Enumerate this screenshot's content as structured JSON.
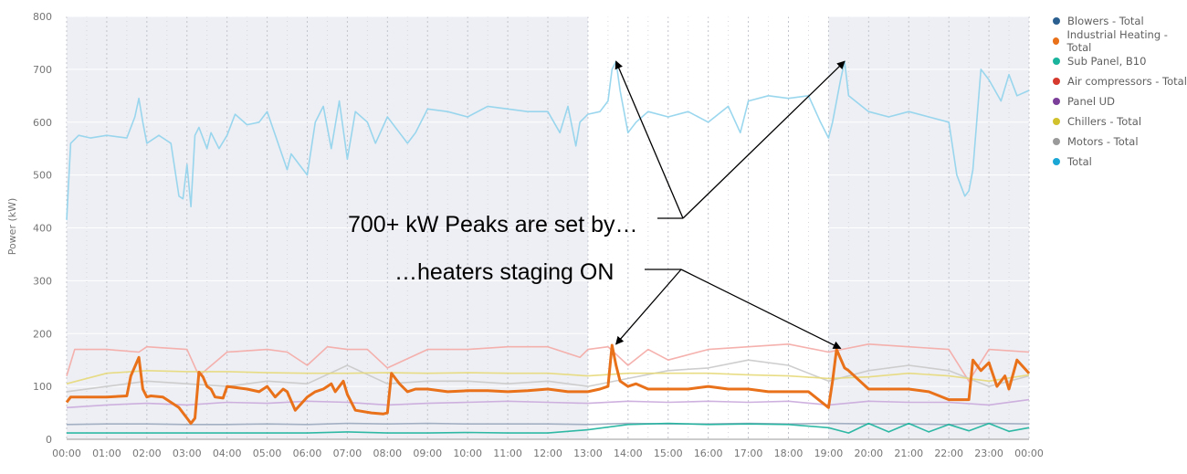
{
  "chart_data": {
    "type": "line",
    "title": "",
    "xlabel": "",
    "ylabel": "Power (kW)",
    "ylim": [
      0,
      800
    ],
    "yticks": [
      0,
      100,
      200,
      300,
      400,
      500,
      600,
      700,
      800
    ],
    "x_tick_labels": [
      "00:00",
      "01:00",
      "02:00",
      "03:00",
      "04:00",
      "05:00",
      "06:00",
      "07:00",
      "08:00",
      "09:00",
      "10:00",
      "11:00",
      "12:00",
      "13:00",
      "14:00",
      "15:00",
      "16:00",
      "17:00",
      "18:00",
      "19:00",
      "20:00",
      "21:00",
      "22:00",
      "23:00",
      "00:00"
    ],
    "x_unit": "hour of day",
    "grid": true,
    "legend_position": "right",
    "shaded_periods": [
      [
        0,
        13
      ],
      [
        19,
        24
      ]
    ],
    "series": [
      {
        "name": "Blowers - Total",
        "color": "#9aa8be",
        "x": [
          0,
          1,
          2,
          3,
          4,
          5,
          6,
          7,
          8,
          9,
          10,
          11,
          12,
          13,
          14,
          15,
          16,
          17,
          18,
          19,
          20,
          21,
          22,
          23,
          24
        ],
        "values": [
          28,
          29,
          29,
          28,
          28,
          29,
          28,
          30,
          29,
          30,
          29,
          29,
          29,
          28,
          30,
          29,
          29,
          30,
          29,
          30,
          29,
          29,
          28,
          30,
          29
        ]
      },
      {
        "name": "Industrial Heating - Total",
        "color": "#e8711a",
        "x": [
          0,
          0.1,
          0.5,
          1,
          1.5,
          1.6,
          1.8,
          1.9,
          2,
          2.1,
          2.4,
          2.8,
          3,
          3.1,
          3.2,
          3.3,
          3.4,
          3.5,
          3.6,
          3.7,
          3.9,
          4,
          4.5,
          4.8,
          5,
          5.2,
          5.4,
          5.5,
          5.7,
          6,
          6.2,
          6.4,
          6.5,
          6.6,
          6.7,
          6.9,
          7,
          7.2,
          7.6,
          7.9,
          8,
          8.1,
          8.3,
          8.5,
          8.7,
          9,
          9.5,
          10,
          10.5,
          11,
          11.5,
          12,
          12.5,
          13,
          13.3,
          13.5,
          13.6,
          13.7,
          13.8,
          14,
          14.2,
          14.5,
          15,
          15.5,
          16,
          16.5,
          17,
          17.5,
          18,
          18.5,
          19,
          19.1,
          19.2,
          19.4,
          19.5,
          20,
          20.5,
          21,
          21.5,
          22,
          22.5,
          22.6,
          22.8,
          23,
          23.2,
          23.4,
          23.5,
          23.7,
          24
        ],
        "values": [
          70,
          80,
          80,
          80,
          82,
          120,
          155,
          95,
          80,
          82,
          80,
          60,
          40,
          30,
          40,
          127,
          118,
          100,
          95,
          80,
          78,
          100,
          95,
          90,
          100,
          80,
          95,
          90,
          55,
          80,
          90,
          95,
          100,
          105,
          90,
          110,
          85,
          55,
          50,
          48,
          50,
          125,
          105,
          90,
          95,
          95,
          90,
          92,
          92,
          90,
          92,
          95,
          90,
          90,
          95,
          100,
          178,
          140,
          110,
          100,
          105,
          95,
          95,
          95,
          100,
          95,
          95,
          90,
          90,
          90,
          60,
          110,
          170,
          135,
          130,
          95,
          95,
          95,
          90,
          75,
          75,
          150,
          130,
          145,
          100,
          120,
          95,
          150,
          125
        ]
      },
      {
        "name": "Sub Panel, B10",
        "color": "#1ab39c",
        "x": [
          0,
          1,
          2,
          3,
          4,
          5,
          6,
          7,
          8,
          9,
          10,
          11,
          12,
          13,
          14,
          15,
          16,
          17,
          18,
          19,
          19.5,
          20,
          20.5,
          21,
          21.5,
          22,
          22.5,
          23,
          23.5,
          24
        ],
        "values": [
          12,
          12,
          12,
          12,
          12,
          12,
          12,
          14,
          12,
          12,
          13,
          12,
          12,
          18,
          28,
          30,
          28,
          29,
          28,
          22,
          12,
          30,
          14,
          30,
          14,
          28,
          16,
          30,
          15,
          22
        ]
      },
      {
        "name": "Air compressors - Total",
        "color": "#f4a9a4",
        "x": [
          0,
          0.2,
          1,
          1.8,
          2,
          3,
          3.3,
          4,
          5,
          5.5,
          6,
          6.5,
          7,
          7.5,
          8,
          9,
          10,
          11,
          12,
          12.8,
          13,
          13.5,
          14,
          14.5,
          15,
          16,
          17,
          18,
          19,
          20,
          21,
          22,
          22.5,
          23,
          24
        ],
        "values": [
          120,
          170,
          170,
          165,
          175,
          170,
          120,
          165,
          170,
          165,
          140,
          175,
          170,
          170,
          135,
          170,
          170,
          175,
          175,
          155,
          170,
          175,
          140,
          170,
          150,
          170,
          175,
          180,
          165,
          180,
          175,
          170,
          110,
          170,
          165
        ]
      },
      {
        "name": "Panel UD",
        "color": "#c9a8dc",
        "x": [
          0,
          1,
          2,
          3,
          4,
          5,
          6,
          7,
          8,
          9,
          10,
          11,
          12,
          13,
          14,
          15,
          16,
          17,
          18,
          19,
          20,
          21,
          22,
          23,
          24
        ],
        "values": [
          60,
          65,
          68,
          65,
          70,
          68,
          72,
          70,
          65,
          68,
          70,
          72,
          70,
          68,
          72,
          70,
          72,
          70,
          72,
          65,
          72,
          70,
          70,
          65,
          75
        ]
      },
      {
        "name": "Chillers - Total",
        "color": "#e5d878",
        "x": [
          0,
          1,
          2,
          3,
          4,
          5,
          6,
          7,
          8,
          9,
          10,
          11,
          12,
          13,
          14,
          15,
          16,
          17,
          18,
          19,
          20,
          21,
          22,
          23,
          24
        ],
        "values": [
          105,
          125,
          130,
          128,
          128,
          126,
          125,
          125,
          126,
          125,
          126,
          125,
          125,
          120,
          125,
          125,
          125,
          122,
          120,
          115,
          118,
          125,
          120,
          110,
          122
        ]
      },
      {
        "name": "Motors - Total",
        "color": "#c9c9c9",
        "x": [
          0,
          1,
          2,
          3,
          4,
          5,
          6,
          7,
          8,
          9,
          10,
          11,
          12,
          13,
          14,
          15,
          16,
          17,
          18,
          19,
          20,
          21,
          22,
          23,
          24
        ],
        "values": [
          90,
          100,
          110,
          105,
          100,
          110,
          105,
          140,
          105,
          110,
          110,
          105,
          110,
          100,
          115,
          130,
          135,
          150,
          140,
          110,
          130,
          140,
          130,
          100,
          120
        ]
      },
      {
        "name": "Total",
        "color": "#8fd3ec",
        "x": [
          0,
          0.1,
          0.3,
          0.6,
          1,
          1.5,
          1.7,
          1.8,
          1.9,
          2,
          2.3,
          2.6,
          2.8,
          2.9,
          3,
          3.1,
          3.2,
          3.3,
          3.5,
          3.6,
          3.8,
          4,
          4.2,
          4.5,
          4.8,
          5,
          5.5,
          5.6,
          5.8,
          6,
          6.2,
          6.4,
          6.6,
          6.8,
          7,
          7.2,
          7.5,
          7.7,
          8,
          8.3,
          8.5,
          8.7,
          9,
          9.5,
          10,
          10.5,
          11,
          11.5,
          12,
          12.3,
          12.5,
          12.7,
          12.8,
          13,
          13.3,
          13.5,
          13.6,
          13.7,
          13.8,
          14,
          14.2,
          14.5,
          15,
          15.5,
          16,
          16.5,
          16.8,
          17,
          17.5,
          18,
          18.5,
          18.8,
          19,
          19.1,
          19.3,
          19.4,
          19.5,
          20,
          20.5,
          21,
          21.5,
          22,
          22.2,
          22.4,
          22.5,
          22.6,
          22.8,
          23,
          23.3,
          23.5,
          23.7,
          24
        ],
        "values": [
          415,
          560,
          575,
          570,
          575,
          570,
          610,
          645,
          600,
          560,
          575,
          560,
          460,
          455,
          520,
          440,
          575,
          590,
          550,
          580,
          550,
          575,
          615,
          595,
          600,
          620,
          510,
          540,
          520,
          500,
          600,
          630,
          550,
          640,
          530,
          620,
          600,
          560,
          610,
          580,
          560,
          580,
          625,
          620,
          610,
          630,
          625,
          620,
          620,
          580,
          630,
          555,
          600,
          615,
          620,
          640,
          700,
          715,
          660,
          580,
          600,
          620,
          610,
          620,
          600,
          630,
          580,
          640,
          650,
          645,
          650,
          600,
          570,
          600,
          680,
          715,
          650,
          620,
          610,
          620,
          610,
          600,
          500,
          460,
          470,
          510,
          700,
          680,
          640,
          690,
          650,
          660
        ]
      }
    ],
    "annotations": [
      {
        "text": "700+ kW Peaks are set by…",
        "targets": [
          [
            13.7,
            715
          ],
          [
            19.4,
            715
          ]
        ]
      },
      {
        "text": "…heaters staging ON",
        "targets": [
          [
            13.7,
            180
          ],
          [
            19.3,
            172
          ]
        ]
      }
    ]
  }
}
